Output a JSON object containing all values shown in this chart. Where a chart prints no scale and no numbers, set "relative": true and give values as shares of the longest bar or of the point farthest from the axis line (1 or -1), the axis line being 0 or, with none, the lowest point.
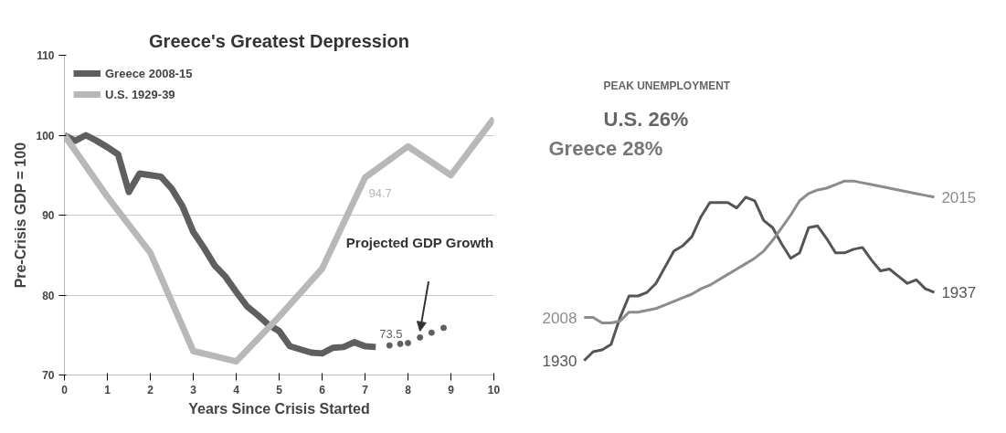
{
  "chart_data": [
    {
      "type": "line",
      "title": "Greece's Greatest Depression",
      "xlabel": "Years Since Crisis Started",
      "ylabel": "Pre-Crisis GDP = 100",
      "xlim": [
        0,
        10
      ],
      "ylim": [
        70,
        110
      ],
      "xticks": [
        0,
        1,
        2,
        3,
        4,
        5,
        6,
        7,
        8,
        9,
        10
      ],
      "yticks": [
        70,
        80,
        90,
        100,
        110
      ],
      "grid": "y",
      "legend": "top left",
      "series": [
        {
          "name": "Greece 2008-15",
          "color": "#5f5f5f",
          "x": [
            0,
            0.25,
            0.5,
            0.75,
            1,
            1.25,
            1.5,
            1.75,
            2,
            2.25,
            2.5,
            2.75,
            3,
            3.25,
            3.5,
            3.75,
            4,
            4.25,
            4.5,
            4.75,
            5,
            5.25,
            5.5,
            5.75,
            6,
            6.25,
            6.5,
            6.75,
            7,
            7.25
          ],
          "values": [
            100,
            99.3,
            100,
            99.3,
            98.5,
            97.6,
            92.9,
            95.2,
            95,
            94.8,
            93.3,
            91.1,
            87.9,
            85.9,
            83.7,
            82.3,
            80.4,
            78.6,
            77.5,
            76.3,
            75.5,
            73.6,
            73.2,
            72.8,
            72.7,
            73.4,
            73.5,
            74.1,
            73.6,
            73.5
          ],
          "value_labels": [
            null,
            null,
            null,
            null,
            null,
            null,
            null,
            null,
            null,
            null,
            null,
            null,
            null,
            null,
            null,
            null,
            null,
            null,
            null,
            null,
            null,
            null,
            null,
            null,
            null,
            null,
            null,
            null,
            null,
            "73.5"
          ]
        },
        {
          "name": "U.S. 1929-39",
          "color": "#b8b8b8",
          "x": [
            0,
            1,
            2,
            3,
            4,
            5,
            6,
            7,
            8,
            9,
            10
          ],
          "values": [
            100,
            92.3,
            85.3,
            73,
            71.7,
            77.3,
            83.3,
            94.7,
            98.6,
            95,
            102.1
          ],
          "value_labels": [
            null,
            null,
            null,
            null,
            null,
            null,
            null,
            "94.7",
            null,
            null,
            null
          ]
        },
        {
          "type": "scatter",
          "marker": "circle",
          "color": "#5f5f5f",
          "x": [
            7.57,
            7.82,
            8.0,
            8.28,
            8.55,
            8.83
          ],
          "values": [
            73.7,
            73.9,
            74.0,
            74.7,
            75.3,
            75.9
          ]
        }
      ],
      "annotations": [
        "Projected GDP Growth"
      ]
    },
    {
      "type": "line",
      "relative": true,
      "categories": [
        null,
        null,
        null,
        null,
        null,
        null,
        null,
        null,
        null,
        null,
        null,
        null,
        null,
        null,
        null,
        null,
        null,
        null,
        null,
        null,
        null,
        null,
        null,
        null,
        null,
        null,
        null,
        null,
        null,
        null,
        null,
        null,
        null,
        null,
        null,
        null,
        null,
        null,
        null,
        null
      ],
      "series": [
        {
          "color": "#555555",
          "values": [
            0,
            0.05,
            0.06,
            0.09,
            0.24,
            0.36,
            0.36,
            0.38,
            0.43,
            0.52,
            0.61,
            0.64,
            0.69,
            0.8,
            0.88,
            0.88,
            0.88,
            0.85,
            0.91,
            0.89,
            0.78,
            0.74,
            0.65,
            0.57,
            0.6,
            0.74,
            0.75,
            0.68,
            0.6,
            0.6,
            0.62,
            0.63,
            0.56,
            0.5,
            0.51,
            0.47,
            0.43,
            0.45,
            0.4,
            0.38
          ]
        },
        {
          "color": "#8c8c8c",
          "values": [
            0.24,
            0.24,
            0.21,
            0.21,
            0.22,
            0.27,
            0.27,
            0.28,
            0.29,
            0.31,
            0.33,
            0.35,
            0.37,
            0.4,
            0.42,
            0.45,
            0.48,
            0.51,
            0.54,
            0.57,
            0.61,
            0.67,
            0.74,
            0.81,
            0.89,
            0.93,
            0.95,
            0.96,
            0.98,
            1.0,
            1.0,
            0.99,
            0.98,
            0.97,
            0.96,
            0.95,
            0.94,
            0.93,
            0.92,
            0.91
          ]
        }
      ],
      "annotations": [
        "PEAK UNEMPLOYMENT",
        "U.S.  26%",
        "Greece  28%",
        "1930",
        "1937",
        "2008",
        "2015"
      ]
    }
  ]
}
